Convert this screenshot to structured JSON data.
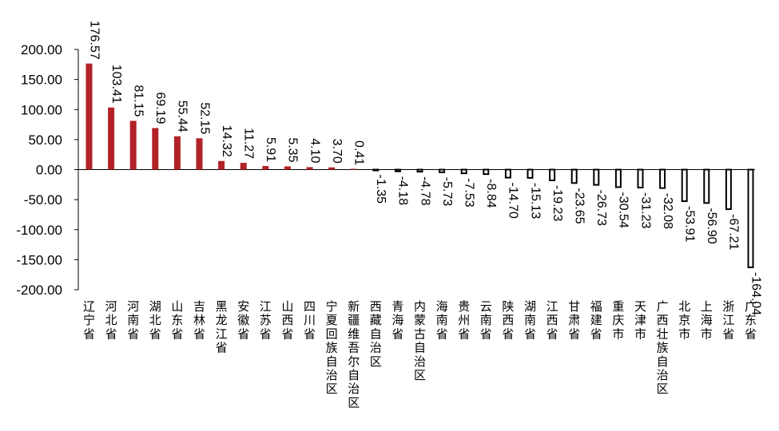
{
  "chart_data": {
    "type": "bar",
    "title": "",
    "xlabel": "",
    "ylabel": "",
    "ylim": [
      -200,
      200
    ],
    "yticks": [
      200,
      150,
      100,
      50,
      0,
      -50,
      -100,
      -150,
      -200
    ],
    "ytick_labels": [
      "200.00",
      "150.00",
      "100.00",
      "50.00",
      "0.00",
      "-50.00",
      "-100.00",
      "-150.00",
      "-200.00"
    ],
    "grid": false,
    "legend": "none",
    "colors": {
      "positive": "#b22227",
      "negative_fill": "#ffffff",
      "negative_stroke": "#000000",
      "axis": "#000000"
    },
    "categories": [
      "辽宁省",
      "河北省",
      "河南省",
      "湖北省",
      "山东省",
      "吉林省",
      "黑龙江省",
      "安徽省",
      "江苏省",
      "山西省",
      "四川省",
      "宁夏回族自治区",
      "新疆维吾尔自治区",
      "西藏自治区",
      "青海省",
      "内蒙古自治区",
      "海南省",
      "贵州省",
      "云南省",
      "陕西省",
      "湖南省",
      "江西省",
      "甘肃省",
      "福建省",
      "重庆市",
      "天津市",
      "广西壮族自治区",
      "北京市",
      "上海市",
      "浙江省",
      "广东省"
    ],
    "values": [
      176.57,
      103.41,
      81.15,
      69.19,
      55.44,
      52.15,
      14.32,
      11.27,
      5.91,
      5.35,
      4.1,
      3.7,
      0.41,
      -1.35,
      -4.18,
      -4.78,
      -5.73,
      -7.53,
      -8.84,
      -14.7,
      -15.13,
      -19.23,
      -23.65,
      -26.73,
      -30.54,
      -31.23,
      -32.08,
      -53.91,
      -56.9,
      -67.21,
      -164.04
    ],
    "value_labels": [
      "176.57",
      "103.41",
      "81.15",
      "69.19",
      "55.44",
      "52.15",
      "14.32",
      "11.27",
      "5.91",
      "5.35",
      "4.10",
      "3.70",
      "0.41",
      "-1.35",
      "-4.18",
      "-4.78",
      "-5.73",
      "-7.53",
      "-8.84",
      "-14.70",
      "-15.13",
      "-19.23",
      "-23.65",
      "-26.73",
      "-30.54",
      "-31.23",
      "-32.08",
      "-53.91",
      "-56.90",
      "-67.21",
      "-164.04"
    ]
  }
}
